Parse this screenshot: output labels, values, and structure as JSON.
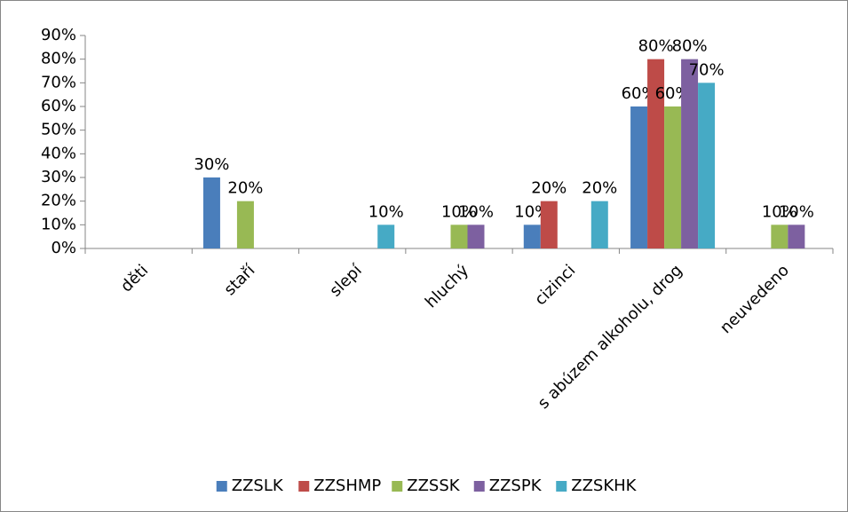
{
  "chart_data": {
    "type": "bar",
    "categories": [
      "děti",
      "staří",
      "slepí",
      "hluchý",
      "cizinci",
      "s abúzem alkoholu, drog",
      "neuvedeno"
    ],
    "series": [
      {
        "name": "ZZSLK",
        "color": "#4a7ebb",
        "values": [
          0,
          30,
          0,
          0,
          10,
          60,
          0
        ],
        "value_labels": [
          null,
          "30%",
          null,
          null,
          "10%",
          "60%",
          null
        ]
      },
      {
        "name": "ZZSHMP",
        "color": "#be4b48",
        "values": [
          0,
          0,
          0,
          0,
          20,
          80,
          0
        ],
        "value_labels": [
          null,
          null,
          null,
          null,
          "20%",
          "80%",
          null
        ]
      },
      {
        "name": "ZZSSK",
        "color": "#98b954",
        "values": [
          0,
          20,
          0,
          10,
          0,
          60,
          10
        ],
        "value_labels": [
          null,
          "20%",
          null,
          "10%",
          null,
          "60%",
          "10%"
        ]
      },
      {
        "name": "ZZSPK",
        "color": "#7d60a0",
        "values": [
          0,
          0,
          0,
          10,
          0,
          80,
          10
        ],
        "value_labels": [
          null,
          null,
          null,
          "10%",
          null,
          "80%",
          "10%"
        ]
      },
      {
        "name": "ZZSKHK",
        "color": "#46aac5",
        "values": [
          0,
          0,
          10,
          0,
          20,
          70,
          0
        ],
        "value_labels": [
          null,
          null,
          "10%",
          null,
          "20%",
          "70%",
          null
        ]
      }
    ],
    "ylim": [
      0,
      90
    ],
    "yticks": [
      {
        "value": 0,
        "label": "0%"
      },
      {
        "value": 10,
        "label": "10%"
      },
      {
        "value": 20,
        "label": "20%"
      },
      {
        "value": 30,
        "label": "30%"
      },
      {
        "value": 40,
        "label": "40%"
      },
      {
        "value": 50,
        "label": "50%"
      },
      {
        "value": 60,
        "label": "60%"
      },
      {
        "value": 70,
        "label": "70%"
      },
      {
        "value": 80,
        "label": "80%"
      },
      {
        "value": 90,
        "label": "90%"
      }
    ],
    "legend": "bottom"
  }
}
